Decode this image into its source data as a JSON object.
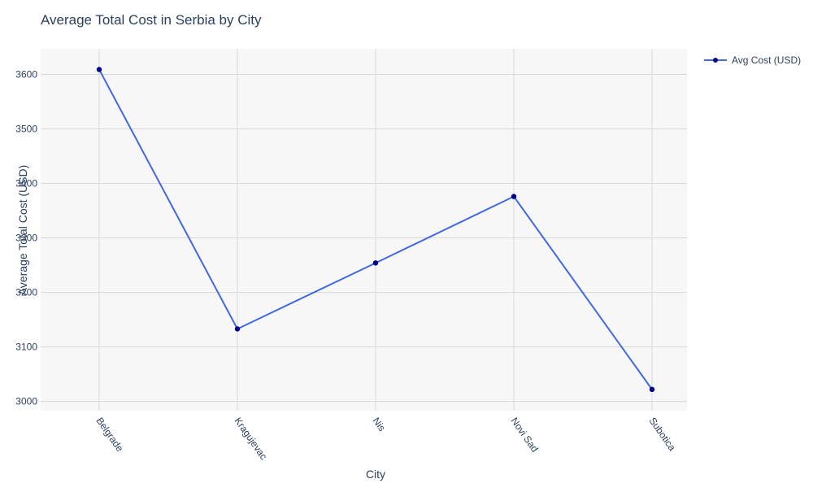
{
  "chart_data": {
    "type": "line",
    "title": "Average Total Cost in Serbia by City",
    "xlabel": "City",
    "ylabel": "Average Total Cost (USD)",
    "categories": [
      "Belgrade",
      "Kragujevac",
      "Nis",
      "Novi Sad",
      "Subotica"
    ],
    "series": [
      {
        "name": "Avg Cost (USD)",
        "values": [
          3609,
          3133,
          3254,
          3376,
          3022
        ]
      }
    ],
    "ylim": [
      2983,
      3647
    ],
    "yticks": [
      3000,
      3100,
      3200,
      3300,
      3400,
      3500,
      3600
    ],
    "grid": true,
    "legend": "top-right",
    "colors": {
      "line": "#4169e1",
      "marker": "#00008b",
      "plot_bg": "#f7f7f7",
      "grid": "#d9d9d9",
      "text": "#2a3f5f"
    }
  }
}
